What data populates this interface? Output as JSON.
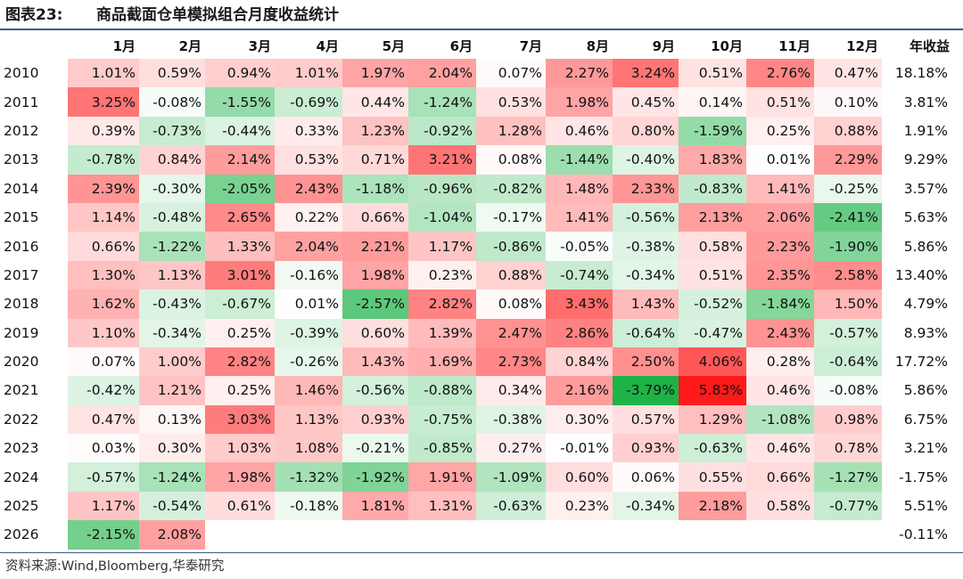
{
  "title": {
    "label": "图表23:",
    "text": "商品截面仓单模拟组合月度收益统计"
  },
  "source": "资料来源:Wind,Bloomberg,华泰研究",
  "colors": {
    "positive": "#ff1a1a",
    "negative": "#1db347",
    "neutral": "#ffffff",
    "rule": "#3f5a87"
  },
  "chart_data": {
    "type": "heatmap",
    "row_header": "",
    "columns": [
      "1月",
      "2月",
      "3月",
      "4月",
      "5月",
      "6月",
      "7月",
      "8月",
      "9月",
      "10月",
      "11月",
      "12月"
    ],
    "annual_header": "年收益",
    "rows": [
      {
        "year": "2010",
        "values": [
          "1.01%",
          "0.59%",
          "0.94%",
          "1.01%",
          "1.97%",
          "2.04%",
          "0.07%",
          "2.27%",
          "3.24%",
          "0.51%",
          "2.76%",
          "0.47%"
        ],
        "annual": "18.18%"
      },
      {
        "year": "2011",
        "values": [
          "3.25%",
          "-0.08%",
          "-1.55%",
          "-0.69%",
          "0.44%",
          "-1.24%",
          "0.53%",
          "1.98%",
          "0.45%",
          "0.14%",
          "0.51%",
          "0.10%"
        ],
        "annual": "3.81%"
      },
      {
        "year": "2012",
        "values": [
          "0.39%",
          "-0.73%",
          "-0.44%",
          "0.33%",
          "1.23%",
          "-0.92%",
          "1.28%",
          "0.46%",
          "0.80%",
          "-1.59%",
          "0.25%",
          "0.88%"
        ],
        "annual": "1.91%"
      },
      {
        "year": "2013",
        "values": [
          "-0.78%",
          "0.84%",
          "2.14%",
          "0.53%",
          "0.71%",
          "3.21%",
          "0.08%",
          "-1.44%",
          "-0.40%",
          "1.83%",
          "0.01%",
          "2.29%"
        ],
        "annual": "9.29%"
      },
      {
        "year": "2014",
        "values": [
          "2.39%",
          "-0.30%",
          "-2.05%",
          "2.43%",
          "-1.18%",
          "-0.96%",
          "-0.82%",
          "1.48%",
          "2.33%",
          "-0.83%",
          "1.41%",
          "-0.25%"
        ],
        "annual": "3.57%"
      },
      {
        "year": "2015",
        "values": [
          "1.14%",
          "-0.48%",
          "2.65%",
          "0.22%",
          "0.66%",
          "-1.04%",
          "-0.17%",
          "1.41%",
          "-0.56%",
          "2.13%",
          "2.06%",
          "-2.41%"
        ],
        "annual": "5.63%"
      },
      {
        "year": "2016",
        "values": [
          "0.66%",
          "-1.22%",
          "1.33%",
          "2.04%",
          "2.21%",
          "1.17%",
          "-0.86%",
          "-0.05%",
          "-0.38%",
          "0.58%",
          "2.23%",
          "-1.90%"
        ],
        "annual": "5.86%"
      },
      {
        "year": "2017",
        "values": [
          "1.30%",
          "1.13%",
          "3.01%",
          "-0.16%",
          "1.98%",
          "0.23%",
          "0.88%",
          "-0.74%",
          "-0.34%",
          "0.51%",
          "2.35%",
          "2.58%"
        ],
        "annual": "13.40%"
      },
      {
        "year": "2018",
        "values": [
          "1.62%",
          "-0.43%",
          "-0.67%",
          "0.01%",
          "-2.57%",
          "2.82%",
          "0.08%",
          "3.43%",
          "1.43%",
          "-0.52%",
          "-1.84%",
          "1.50%"
        ],
        "annual": "4.79%"
      },
      {
        "year": "2019",
        "values": [
          "1.10%",
          "-0.34%",
          "0.25%",
          "-0.39%",
          "0.60%",
          "1.39%",
          "2.47%",
          "2.86%",
          "-0.64%",
          "-0.47%",
          "2.43%",
          "-0.57%"
        ],
        "annual": "8.93%"
      },
      {
        "year": "2020",
        "values": [
          "0.07%",
          "1.00%",
          "2.82%",
          "-0.26%",
          "1.43%",
          "1.69%",
          "2.73%",
          "0.84%",
          "2.50%",
          "4.06%",
          "0.28%",
          "-0.64%"
        ],
        "annual": "17.72%"
      },
      {
        "year": "2021",
        "values": [
          "-0.42%",
          "1.21%",
          "0.25%",
          "1.46%",
          "-0.56%",
          "-0.88%",
          "0.34%",
          "2.16%",
          "-3.79%",
          "5.83%",
          "0.46%",
          "-0.08%"
        ],
        "annual": "5.86%"
      },
      {
        "year": "2022",
        "values": [
          "0.47%",
          "0.13%",
          "3.03%",
          "1.13%",
          "0.93%",
          "-0.75%",
          "-0.38%",
          "0.30%",
          "0.57%",
          "1.29%",
          "-1.08%",
          "0.98%"
        ],
        "annual": "6.75%"
      },
      {
        "year": "2023",
        "values": [
          "0.03%",
          "0.30%",
          "1.03%",
          "1.08%",
          "-0.21%",
          "-0.85%",
          "0.27%",
          "-0.01%",
          "0.93%",
          "-0.63%",
          "0.46%",
          "0.78%"
        ],
        "annual": "3.21%"
      },
      {
        "year": "2024",
        "values": [
          "-0.57%",
          "-1.24%",
          "1.98%",
          "-1.32%",
          "-1.92%",
          "1.91%",
          "-1.09%",
          "0.60%",
          "0.06%",
          "0.55%",
          "0.66%",
          "-1.27%"
        ],
        "annual": "-1.75%"
      },
      {
        "year": "2025",
        "values": [
          "1.17%",
          "-0.54%",
          "0.61%",
          "-0.18%",
          "1.81%",
          "1.31%",
          "-0.63%",
          "0.23%",
          "-0.34%",
          "2.18%",
          "0.58%",
          "-0.77%"
        ],
        "annual": "5.51%"
      },
      {
        "year": "2026",
        "values": [
          "-2.15%",
          "2.08%",
          "",
          "",
          "",
          "",
          "",
          "",
          "",
          "",
          "",
          ""
        ],
        "annual": "-0.11%"
      }
    ]
  }
}
